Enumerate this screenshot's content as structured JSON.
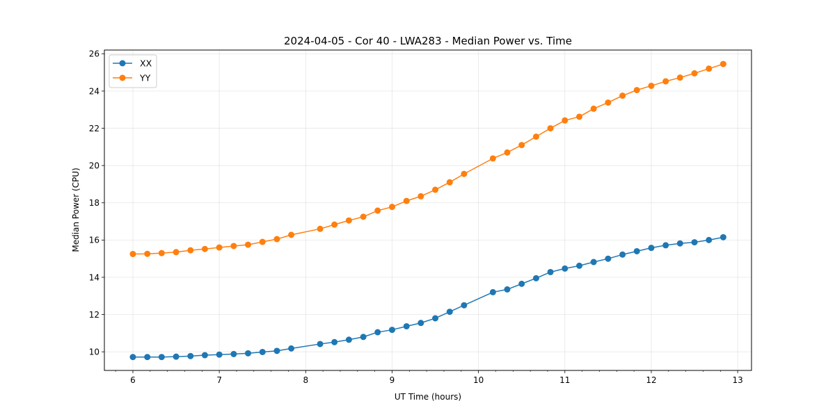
{
  "chart_data": {
    "type": "line",
    "title": "2024-04-05 - Cor 40 - LWA283 - Median Power vs. Time",
    "xlabel": "UT Time (hours)",
    "ylabel": "Median Power (CPU)",
    "xlim": [
      5.67,
      13.16
    ],
    "ylim": [
      9.0,
      26.2
    ],
    "xticks": [
      6,
      7,
      8,
      9,
      10,
      11,
      12,
      13
    ],
    "yticks": [
      10,
      12,
      14,
      16,
      18,
      20,
      22,
      24,
      26
    ],
    "xminor_step": 0.2,
    "grid": true,
    "legend_position": "top-left",
    "series": [
      {
        "name": "XX",
        "color": "#1f77b4",
        "x": [
          6.0,
          6.167,
          6.333,
          6.5,
          6.667,
          6.833,
          7.0,
          7.167,
          7.333,
          7.5,
          7.667,
          7.833,
          8.167,
          8.333,
          8.5,
          8.667,
          8.833,
          9.0,
          9.167,
          9.333,
          9.5,
          9.667,
          9.833,
          10.167,
          10.333,
          10.5,
          10.667,
          10.833,
          11.0,
          11.167,
          11.333,
          11.5,
          11.667,
          11.833,
          12.0,
          12.167,
          12.333,
          12.5,
          12.667,
          12.833
        ],
        "values": [
          9.72,
          9.72,
          9.72,
          9.74,
          9.77,
          9.82,
          9.85,
          9.88,
          9.92,
          9.99,
          10.05,
          10.18,
          10.42,
          10.52,
          10.65,
          10.8,
          11.05,
          11.18,
          11.37,
          11.55,
          11.8,
          12.15,
          12.5,
          13.2,
          13.35,
          13.65,
          13.95,
          14.28,
          14.47,
          14.62,
          14.82,
          15.0,
          15.22,
          15.4,
          15.58,
          15.72,
          15.82,
          15.88,
          16.0,
          16.15
        ]
      },
      {
        "name": "YY",
        "color": "#ff7f0e",
        "x": [
          6.0,
          6.167,
          6.333,
          6.5,
          6.667,
          6.833,
          7.0,
          7.167,
          7.333,
          7.5,
          7.667,
          7.833,
          8.167,
          8.333,
          8.5,
          8.667,
          8.833,
          9.0,
          9.167,
          9.333,
          9.5,
          9.667,
          9.833,
          10.167,
          10.333,
          10.5,
          10.667,
          10.833,
          11.0,
          11.167,
          11.333,
          11.5,
          11.667,
          11.833,
          12.0,
          12.167,
          12.333,
          12.5,
          12.667,
          12.833
        ],
        "values": [
          15.25,
          15.26,
          15.3,
          15.35,
          15.45,
          15.52,
          15.6,
          15.68,
          15.75,
          15.9,
          16.05,
          16.28,
          16.6,
          16.83,
          17.05,
          17.25,
          17.58,
          17.78,
          18.1,
          18.35,
          18.7,
          19.1,
          19.55,
          20.38,
          20.7,
          21.1,
          21.55,
          22.0,
          22.42,
          22.62,
          23.05,
          23.38,
          23.75,
          24.05,
          24.28,
          24.52,
          24.72,
          24.95,
          25.2,
          25.45
        ]
      }
    ]
  }
}
